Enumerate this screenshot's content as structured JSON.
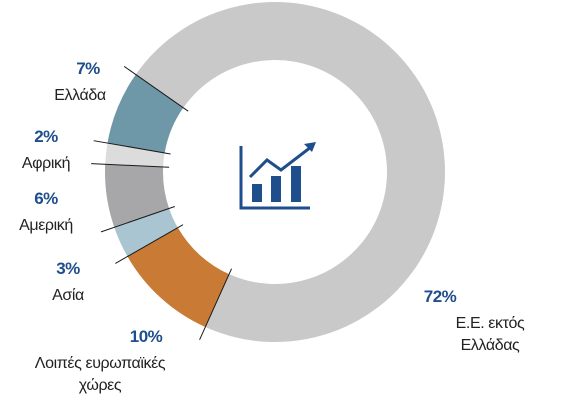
{
  "chart_data": {
    "type": "donut",
    "categories": [
      "Ελλάδα",
      "Αφρική",
      "Αμερική",
      "Ασία",
      "Λοιπές ευρωπαϊκές χώρες",
      "Ε.Ε. εκτός Ελλάδας"
    ],
    "values": [
      7,
      2,
      6,
      3,
      10,
      72
    ],
    "value_labels": [
      "7%",
      "2%",
      "6%",
      "3%",
      "10%",
      "72%"
    ],
    "colors": [
      "#6e98a8",
      "#dcdcdc",
      "#a7a7aa",
      "#a9c5d1",
      "#c97a35",
      "#c9c9c9"
    ]
  }
}
